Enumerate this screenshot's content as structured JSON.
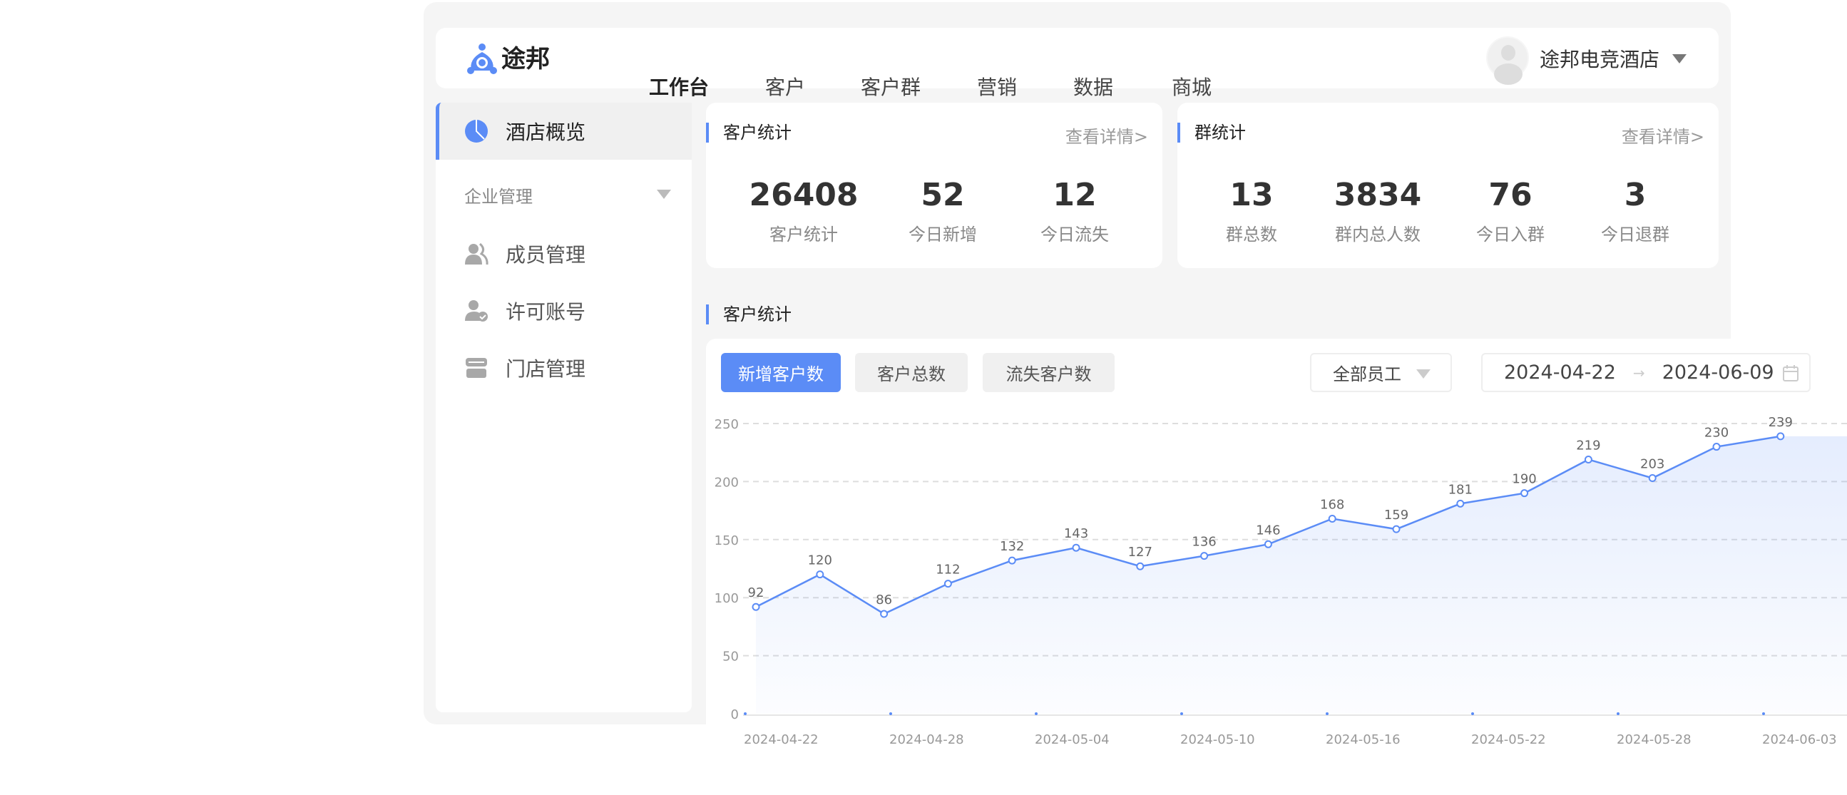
{
  "header": {
    "brand": "途邦",
    "nav": [
      {
        "label": "工作台",
        "active": true
      },
      {
        "label": "客户"
      },
      {
        "label": "客户群"
      },
      {
        "label": "营销"
      },
      {
        "label": "数据"
      },
      {
        "label": "商城"
      }
    ],
    "user": "途邦电竞酒店"
  },
  "sidebar": {
    "active": {
      "label": "酒店概览",
      "icon": "pie-chart-icon"
    },
    "group": "企业管理",
    "items": [
      {
        "label": "成员管理",
        "icon": "members-icon"
      },
      {
        "label": "许可账号",
        "icon": "user-check-icon"
      },
      {
        "label": "门店管理",
        "icon": "store-icon"
      }
    ]
  },
  "customer_stats": {
    "title": "客户统计",
    "more": "查看详情>",
    "items": [
      {
        "value": "26408",
        "label": "客户统计"
      },
      {
        "value": "52",
        "label": "今日新增"
      },
      {
        "value": "12",
        "label": "今日流失"
      }
    ]
  },
  "group_stats": {
    "title": "群统计",
    "more": "查看详情>",
    "items": [
      {
        "value": "13",
        "label": "群总数"
      },
      {
        "value": "3834",
        "label": "群内总人数"
      },
      {
        "value": "76",
        "label": "今日入群"
      },
      {
        "value": "3",
        "label": "今日退群"
      }
    ]
  },
  "chart_section": {
    "title": "客户统计",
    "tabs": [
      {
        "label": "新增客户数",
        "active": true
      },
      {
        "label": "客户总数"
      },
      {
        "label": "流失客户数"
      }
    ],
    "staff_filter": "全部员工",
    "date_start": "2024-04-22",
    "date_sep": "→",
    "date_end": "2024-06-09"
  },
  "accent": "#5b8cf6",
  "chart_data": {
    "type": "area",
    "values": [
      92,
      120,
      86,
      112,
      132,
      143,
      127,
      136,
      146,
      168,
      159,
      181,
      190,
      219,
      203,
      230,
      239
    ],
    "x_ticks": [
      "2024-04-22",
      "2024-04-28",
      "2024-05-04",
      "2024-05-10",
      "2024-05-16",
      "2024-05-22",
      "2024-05-28",
      "2024-06-03"
    ],
    "y_ticks": [
      0,
      50,
      100,
      150,
      200,
      250
    ],
    "ylim": [
      0,
      250
    ],
    "grid": true,
    "data_labels": true,
    "color": "#5b8cf6"
  }
}
